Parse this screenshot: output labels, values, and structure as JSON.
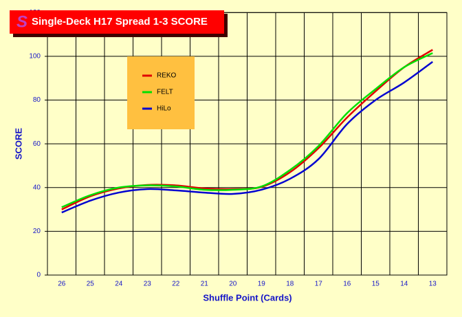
{
  "chart_data": {
    "type": "line",
    "title": "Single-Deck H17 Spread 1-3 SCORE",
    "x_label": "Shuffle Point (Cards)",
    "y_label": "SCORE",
    "categories": [
      "26",
      "25",
      "24",
      "23",
      "22",
      "21",
      "20",
      "19",
      "18",
      "17",
      "16",
      "15",
      "14",
      "13"
    ],
    "series": [
      {
        "name": "REKO",
        "color": "#E00000",
        "values": [
          30,
          36,
          39.6,
          41.2,
          41,
          39.6,
          39.3,
          40.3,
          47,
          58,
          72,
          84,
          95,
          103
        ]
      },
      {
        "name": "FELT",
        "color": "#00E000",
        "values": [
          31,
          36.5,
          40,
          41,
          40.5,
          39,
          39,
          40.5,
          48,
          59,
          74,
          85,
          95,
          101.5
        ]
      },
      {
        "name": "HiLo",
        "color": "#0000D0",
        "values": [
          28.6,
          34,
          37.7,
          39.3,
          38.7,
          37.7,
          37.1,
          39,
          44,
          53,
          69,
          80,
          88,
          97.5
        ]
      }
    ],
    "ylim": [
      0,
      120
    ],
    "yticks": [
      0,
      20,
      40,
      60,
      80,
      100,
      120
    ],
    "grid": true
  }
}
